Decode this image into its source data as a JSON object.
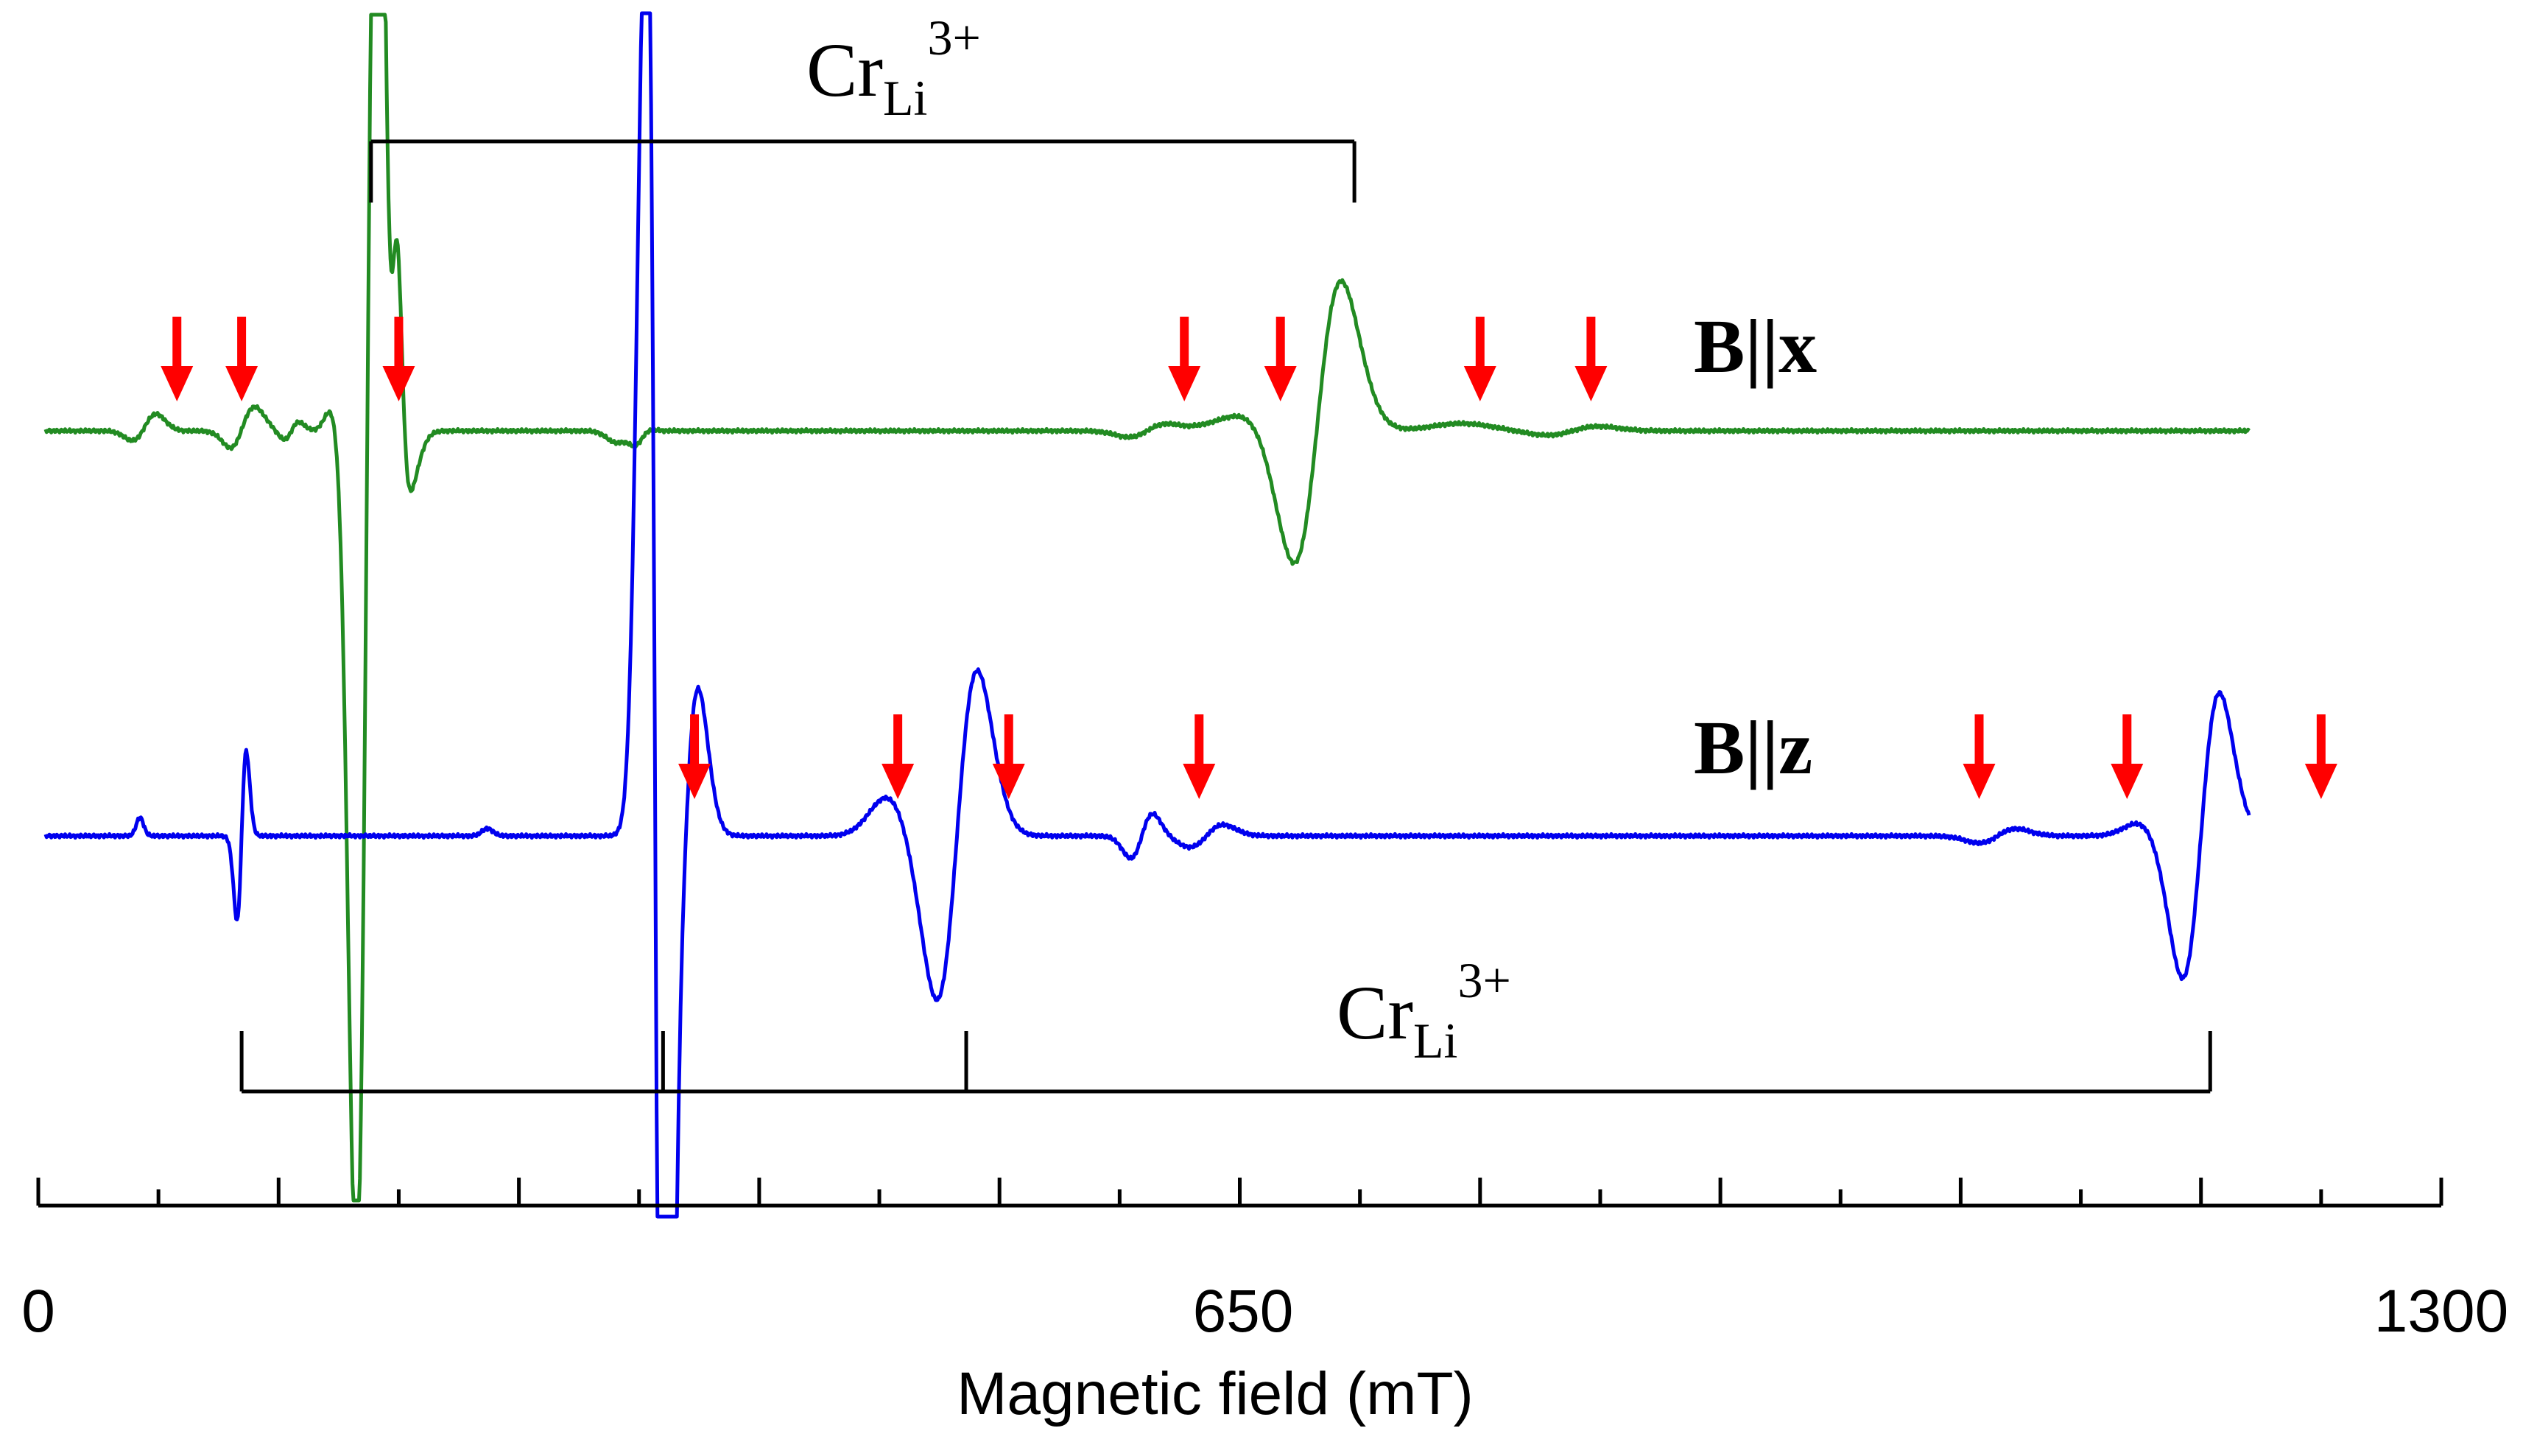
{
  "chart_data": {
    "type": "line",
    "title": "",
    "xlabel": "Magnetic field (mT)",
    "ylabel": "",
    "xlim": [
      0,
      1300
    ],
    "x_ticks": [
      "0",
      "650",
      "1300"
    ],
    "series": [
      {
        "name": "B||x",
        "color": "#228B22",
        "arrows_mT": [
          75,
          110,
          195,
          620,
          672,
          780,
          840
        ]
      },
      {
        "name": "B||z",
        "color": "#0000EE",
        "arrows_mT": [
          355,
          465,
          525,
          628,
          1050,
          1130,
          1235
        ]
      }
    ],
    "annotations": [
      {
        "base": "Cr",
        "sub": "Li",
        "sup": "3+",
        "series": "B||x",
        "bracket_mT": [
          180,
          712
        ]
      },
      {
        "base": "Cr",
        "sub": "Li",
        "sup": "3+",
        "series": "B||z",
        "bracket_mT": [
          110,
          338,
          502,
          1175
        ]
      }
    ],
    "arrow_color": "#FF0000"
  }
}
